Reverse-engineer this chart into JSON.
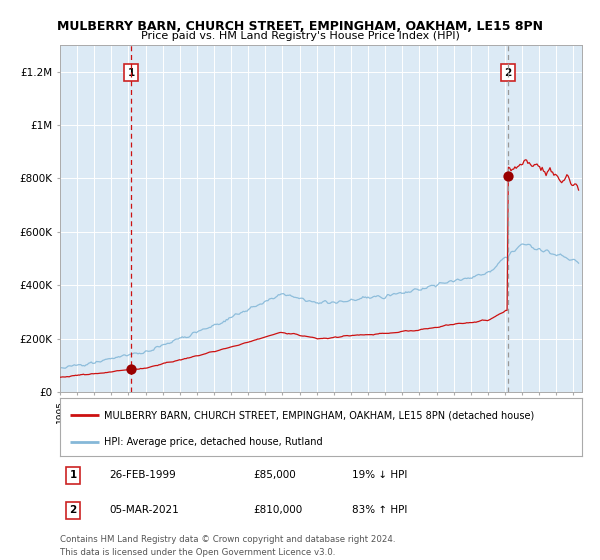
{
  "title": "MULBERRY BARN, CHURCH STREET, EMPINGHAM, OAKHAM, LE15 8PN",
  "subtitle": "Price paid vs. HM Land Registry's House Price Index (HPI)",
  "bg_color": "#dceaf5",
  "hpi_color": "#85b8d8",
  "price_color": "#cc1111",
  "marker_color": "#990000",
  "vline1_color": "#cc1111",
  "vline2_color": "#999999",
  "ylim": [
    0,
    1300000
  ],
  "yticks": [
    0,
    200000,
    400000,
    600000,
    800000,
    1000000,
    1200000
  ],
  "ytick_labels": [
    "£0",
    "£200K",
    "£400K",
    "£600K",
    "£800K",
    "£1M",
    "£1.2M"
  ],
  "year_start": 1995,
  "year_end": 2025,
  "sale1_year": 1999.15,
  "sale1_price": 85000,
  "sale2_year": 2021.17,
  "sale2_price": 810000,
  "legend_red_label": "MULBERRY BARN, CHURCH STREET, EMPINGHAM, OAKHAM, LE15 8PN (detached house)",
  "legend_blue_label": "HPI: Average price, detached house, Rutland",
  "table_row1": [
    "1",
    "26-FEB-1999",
    "£85,000",
    "19% ↓ HPI"
  ],
  "table_row2": [
    "2",
    "05-MAR-2021",
    "£810,000",
    "83% ↑ HPI"
  ],
  "footer": "Contains HM Land Registry data © Crown copyright and database right 2024.\nThis data is licensed under the Open Government Licence v3.0."
}
